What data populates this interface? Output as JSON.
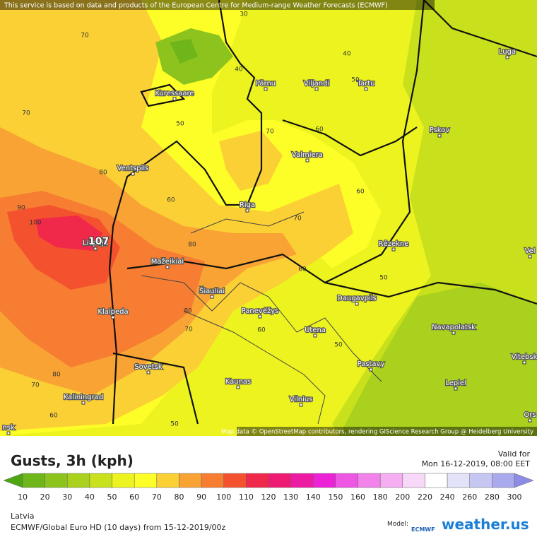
{
  "header": {
    "notice": "This service is based on data and products of the European Centre for Medium-range Weather Forecasts (ECMWF)"
  },
  "map": {
    "attribution": "Map data © OpenStreetMap contributors, rendering GIScience Research Group @ Heidelberg University",
    "cities": [
      "Kuressaare",
      "Pärnu",
      "Viljandi",
      "Tartu",
      "Luga",
      "Pskov",
      "Ventspils",
      "Valmiera",
      "Riga",
      "Liepaja",
      "Rēzekne",
      "Vel",
      "Mažeikiai",
      "Šiauliai",
      "Klaipeda",
      "Panevėžys",
      "Daugavpils",
      "Navapolatsk",
      "Utena",
      "Vitebsk",
      "Sovetsk",
      "Pastavy",
      "Kaunas",
      "Lepiel",
      "Kaliningrad",
      "Vilnius",
      "Ors",
      "nsk"
    ],
    "contour_labels": [
      30,
      40,
      40,
      50,
      50,
      70,
      70,
      70,
      60,
      80,
      90,
      100,
      107,
      60,
      60,
      70,
      80,
      60,
      50,
      80,
      70,
      60,
      50,
      80,
      70,
      60,
      50
    ]
  },
  "footer": {
    "title": "Gusts, 3h (kph)",
    "valid_label": "Valid for",
    "valid_time": "Mon 16-12-2019, 08:00 EET",
    "region": "Latvia",
    "run": "ECMWF/Global Euro HD (10 days) from 15-12-2019/00z",
    "model_label": "Model:",
    "model": "ECMWF",
    "brand": "weather.us"
  },
  "legend": {
    "labels": [
      10,
      20,
      30,
      40,
      50,
      60,
      70,
      80,
      90,
      100,
      110,
      120,
      130,
      140,
      150,
      160,
      180,
      200,
      220,
      240,
      260,
      280,
      300
    ],
    "colors": [
      "#4ea612",
      "#6fb61a",
      "#8cc41d",
      "#a9d11e",
      "#c9e01c",
      "#ecf31f",
      "#fdfd28",
      "#fbd034",
      "#f9a335",
      "#f67d31",
      "#f4522e",
      "#f0284a",
      "#ef1a74",
      "#ed1aa4",
      "#eb22d6",
      "#ee56e4",
      "#f183ea",
      "#f4aef1",
      "#f8d8f8",
      "#ffffff",
      "#e2e2f8",
      "#c6c6f2",
      "#a9a9ed",
      "#8c8ce6"
    ]
  }
}
